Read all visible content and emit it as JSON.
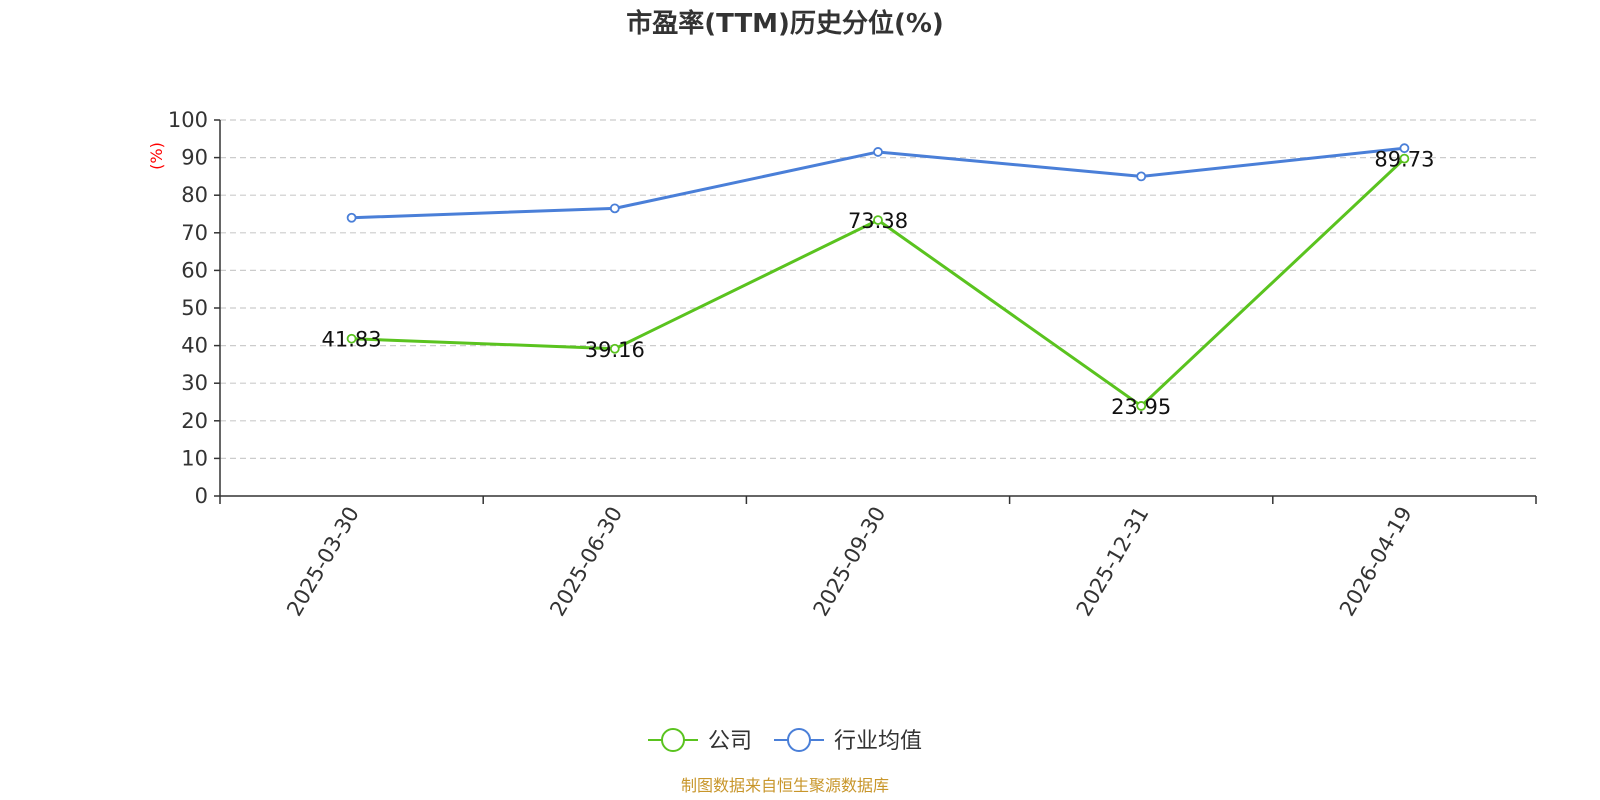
{
  "chart_data": {
    "type": "line",
    "title": "市盈率(TTM)历史分位(%)",
    "ylabel": "(%)",
    "xlabel": "",
    "ylim": [
      0,
      100
    ],
    "yticks": [
      "0",
      "10",
      "20",
      "30",
      "40",
      "50",
      "60",
      "70",
      "80",
      "90",
      "100"
    ],
    "categories": [
      "2025-03-30",
      "2025-06-30",
      "2025-09-30",
      "2025-12-31",
      "2026-04-19"
    ],
    "series": [
      {
        "name": "公司",
        "color": "#5ac31f",
        "values": [
          41.83,
          39.16,
          73.38,
          23.95,
          89.73
        ],
        "labels": [
          "41.83",
          "39.16",
          "73.38",
          "23.95",
          "89.73"
        ]
      },
      {
        "name": "行业均值",
        "color": "#4a7fd8",
        "values": [
          74.0,
          76.5,
          91.5,
          85.0,
          92.5
        ]
      }
    ],
    "grid": true,
    "legend_position": "bottom"
  },
  "source_note": "制图数据来自恒生聚源数据库"
}
